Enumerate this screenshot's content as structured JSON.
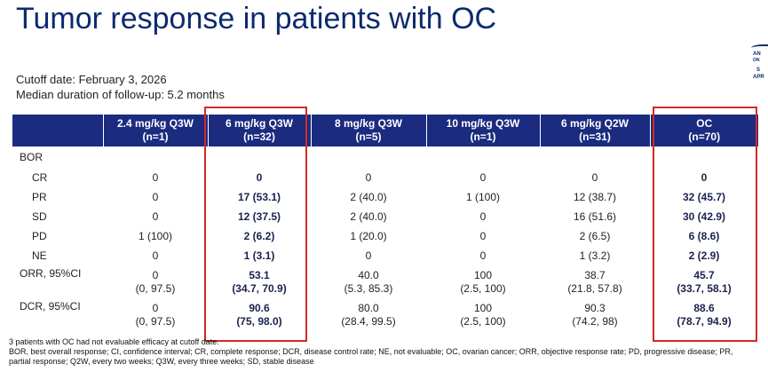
{
  "title": "Tumor response in patients with OC",
  "logo_lines": [
    "AN",
    "ON",
    "S",
    "APR"
  ],
  "cutoff": "Cutoff date: February 3, 2026",
  "followup": "Median duration of follow-up: 5.2 months",
  "columns": [
    {
      "l1": "2.4 mg/kg Q3W",
      "l2": "(n=1)"
    },
    {
      "l1": "6 mg/kg Q3W",
      "l2": "(n=32)"
    },
    {
      "l1": "8 mg/kg Q3W",
      "l2": "(n=5)"
    },
    {
      "l1": "10 mg/kg Q3W",
      "l2": "(n=1)"
    },
    {
      "l1": "6 mg/kg Q2W",
      "l2": "(n=31)"
    },
    {
      "l1": "OC",
      "l2": "(n=70)"
    }
  ],
  "bor_label": "BOR",
  "rows": [
    {
      "label": "CR",
      "values": [
        "0",
        "0",
        "0",
        "0",
        "0",
        "0"
      ]
    },
    {
      "label": "PR",
      "values": [
        "0",
        "17 (53.1)",
        "2 (40.0)",
        "1 (100)",
        "12 (38.7)",
        "32 (45.7)"
      ]
    },
    {
      "label": "SD",
      "values": [
        "0",
        "12 (37.5)",
        "2 (40.0)",
        "0",
        "16 (51.6)",
        "30 (42.9)"
      ]
    },
    {
      "label": "PD",
      "values": [
        "1 (100)",
        "2 (6.2)",
        "1 (20.0)",
        "0",
        "2 (6.5)",
        "6 (8.6)"
      ]
    },
    {
      "label": "NE",
      "values": [
        "0",
        "1 (3.1)",
        "0",
        "0",
        "1 (3.2)",
        "2 (2.9)"
      ]
    }
  ],
  "ci_rows": [
    {
      "label": "ORR, 95%CI",
      "values": [
        "0",
        "53.1",
        "40.0",
        "100",
        "38.7",
        "45.7"
      ],
      "cis": [
        "(0, 97.5)",
        "(34.7, 70.9)",
        "(5.3, 85.3)",
        "(2.5, 100)",
        "(21.8, 57.8)",
        "(33.7, 58.1)"
      ]
    },
    {
      "label": "DCR, 95%CI",
      "values": [
        "0",
        "90.6",
        "80.0",
        "100",
        "90.3",
        "88.6"
      ],
      "cis": [
        "(0, 97.5)",
        "(75, 98.0)",
        "(28.4, 99.5)",
        "(2.5, 100)",
        "(74.2, 98)",
        "(78.7, 94.9)"
      ]
    }
  ],
  "footnote1": "3 patients with OC had not evaluable efficacy at cutoff date.",
  "footnote2": "BOR, best overall response; CI, confidence interval; CR, complete response; DCR, disease control rate; NE, not evaluable; OC, ovarian cancer; ORR, objective response rate; PD, progressive disease; PR, partial response; Q2W, every two weeks; Q3W, every three weeks; SD, stable disease",
  "colors": {
    "title": "#0b2a6f",
    "header_bg": "#1b2c80",
    "highlight": "#d62828"
  }
}
